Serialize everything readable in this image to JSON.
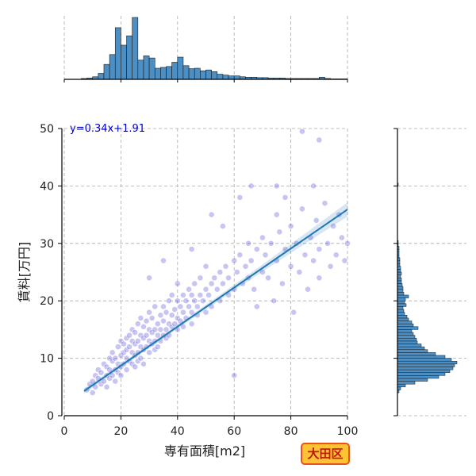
{
  "chart_data": {
    "type": "scatter",
    "title": "",
    "xlabel": "専有面積[m2]",
    "ylabel": "賃料[万円]",
    "xlim": [
      0,
      100
    ],
    "ylim": [
      0,
      50
    ],
    "xticks": [
      "0",
      "20",
      "40",
      "60",
      "80",
      "100"
    ],
    "yticks": [
      "0",
      "10",
      "20",
      "30",
      "40",
      "50"
    ],
    "grid": true,
    "annotation": "y=0.34x+1.91",
    "badge": "大田区",
    "regression": {
      "slope": 0.34,
      "intercept": 1.91,
      "x_range": [
        7,
        100
      ]
    },
    "points": [
      [
        8,
        4.5
      ],
      [
        9,
        5.5
      ],
      [
        10,
        6
      ],
      [
        10,
        4
      ],
      [
        11,
        7
      ],
      [
        11,
        5
      ],
      [
        12,
        6.5
      ],
      [
        12,
        8
      ],
      [
        13,
        5.5
      ],
      [
        13,
        7.5
      ],
      [
        14,
        6
      ],
      [
        14,
        9
      ],
      [
        15,
        7
      ],
      [
        15,
        8.5
      ],
      [
        15,
        5
      ],
      [
        16,
        6.5
      ],
      [
        16,
        10
      ],
      [
        16,
        8
      ],
      [
        17,
        7
      ],
      [
        17,
        9.5
      ],
      [
        17,
        11
      ],
      [
        18,
        8
      ],
      [
        18,
        6
      ],
      [
        18,
        10
      ],
      [
        19,
        9
      ],
      [
        19,
        7.5
      ],
      [
        19,
        12
      ],
      [
        20,
        8.5
      ],
      [
        20,
        10.5
      ],
      [
        20,
        13
      ],
      [
        20,
        7
      ],
      [
        21,
        9
      ],
      [
        21,
        11
      ],
      [
        21,
        12.5
      ],
      [
        22,
        10
      ],
      [
        22,
        8
      ],
      [
        22,
        13.5
      ],
      [
        22,
        11.5
      ],
      [
        23,
        9.5
      ],
      [
        23,
        12
      ],
      [
        23,
        14
      ],
      [
        24,
        11
      ],
      [
        24,
        9
      ],
      [
        24,
        13
      ],
      [
        24,
        15
      ],
      [
        25,
        10.5
      ],
      [
        25,
        12.5
      ],
      [
        25,
        14.5
      ],
      [
        25,
        8.5
      ],
      [
        26,
        11
      ],
      [
        26,
        13
      ],
      [
        26,
        16
      ],
      [
        26,
        9.5
      ],
      [
        27,
        12
      ],
      [
        27,
        14
      ],
      [
        27,
        10
      ],
      [
        27,
        17
      ],
      [
        28,
        11.5
      ],
      [
        28,
        13.5
      ],
      [
        28,
        15.5
      ],
      [
        28,
        9
      ],
      [
        29,
        12
      ],
      [
        29,
        14
      ],
      [
        29,
        16.5
      ],
      [
        30,
        13
      ],
      [
        30,
        11
      ],
      [
        30,
        15
      ],
      [
        30,
        18
      ],
      [
        31,
        12.5
      ],
      [
        31,
        14.5
      ],
      [
        31,
        17
      ],
      [
        32,
        13
      ],
      [
        32,
        15
      ],
      [
        32,
        11.5
      ],
      [
        32,
        19
      ],
      [
        33,
        14
      ],
      [
        33,
        16
      ],
      [
        33,
        12
      ],
      [
        34,
        15
      ],
      [
        34,
        13
      ],
      [
        34,
        17.5
      ],
      [
        35,
        14
      ],
      [
        35,
        16.5
      ],
      [
        35,
        19
      ],
      [
        36,
        15
      ],
      [
        36,
        13.5
      ],
      [
        36,
        18
      ],
      [
        37,
        16
      ],
      [
        37,
        14
      ],
      [
        37,
        20
      ],
      [
        38,
        15.5
      ],
      [
        38,
        17.5
      ],
      [
        38,
        21
      ],
      [
        39,
        16
      ],
      [
        39,
        18.5
      ],
      [
        40,
        17
      ],
      [
        40,
        15
      ],
      [
        40,
        20
      ],
      [
        40,
        23
      ],
      [
        41,
        16.5
      ],
      [
        41,
        19
      ],
      [
        42,
        18
      ],
      [
        42,
        21
      ],
      [
        42,
        15.5
      ],
      [
        43,
        17
      ],
      [
        43,
        20
      ],
      [
        44,
        19
      ],
      [
        44,
        22
      ],
      [
        45,
        18
      ],
      [
        45,
        16
      ],
      [
        45,
        21
      ],
      [
        46,
        20
      ],
      [
        46,
        23
      ],
      [
        47,
        19
      ],
      [
        47,
        17.5
      ],
      [
        48,
        21
      ],
      [
        48,
        24
      ],
      [
        49,
        20
      ],
      [
        50,
        22
      ],
      [
        50,
        18
      ],
      [
        50,
        26
      ],
      [
        51,
        21
      ],
      [
        52,
        23
      ],
      [
        52,
        19
      ],
      [
        53,
        24
      ],
      [
        54,
        22
      ],
      [
        55,
        25
      ],
      [
        55,
        20
      ],
      [
        56,
        23
      ],
      [
        57,
        26
      ],
      [
        58,
        24
      ],
      [
        58,
        21
      ],
      [
        60,
        27
      ],
      [
        60,
        22
      ],
      [
        60,
        7
      ],
      [
        61,
        25
      ],
      [
        62,
        28
      ],
      [
        63,
        23
      ],
      [
        64,
        26
      ],
      [
        65,
        24
      ],
      [
        65,
        30
      ],
      [
        66,
        27
      ],
      [
        67,
        22
      ],
      [
        68,
        29
      ],
      [
        68,
        19
      ],
      [
        70,
        25
      ],
      [
        70,
        31
      ],
      [
        71,
        28
      ],
      [
        72,
        24
      ],
      [
        73,
        30
      ],
      [
        74,
        20
      ],
      [
        75,
        27
      ],
      [
        75,
        35
      ],
      [
        76,
        32
      ],
      [
        77,
        23
      ],
      [
        78,
        29
      ],
      [
        80,
        26
      ],
      [
        80,
        33
      ],
      [
        81,
        18
      ],
      [
        82,
        30
      ],
      [
        83,
        25
      ],
      [
        84,
        36
      ],
      [
        85,
        28
      ],
      [
        86,
        22
      ],
      [
        87,
        31
      ],
      [
        88,
        27
      ],
      [
        88,
        40
      ],
      [
        89,
        34
      ],
      [
        90,
        29
      ],
      [
        90,
        24
      ],
      [
        92,
        37
      ],
      [
        93,
        30
      ],
      [
        94,
        26
      ],
      [
        95,
        33
      ],
      [
        96,
        28
      ],
      [
        97,
        35
      ],
      [
        98,
        31
      ],
      [
        99,
        27
      ],
      [
        84,
        49.5
      ],
      [
        90,
        48
      ],
      [
        66,
        40
      ],
      [
        62,
        38
      ],
      [
        75,
        40
      ],
      [
        52,
        35
      ],
      [
        45,
        29
      ],
      [
        35,
        27
      ],
      [
        30,
        24
      ],
      [
        56,
        33
      ],
      [
        78,
        38
      ],
      [
        100,
        30
      ]
    ],
    "top_histogram": {
      "bin_width": 2,
      "bin_starts": [
        6,
        8,
        10,
        12,
        14,
        16,
        18,
        20,
        22,
        24,
        26,
        28,
        30,
        32,
        34,
        36,
        38,
        40,
        42,
        44,
        46,
        48,
        50,
        52,
        54,
        56,
        58,
        60,
        62,
        64,
        66,
        68,
        70,
        72,
        74,
        76,
        78,
        80,
        82,
        84,
        86,
        88,
        90,
        92,
        94,
        96,
        98
      ],
      "counts": [
        2,
        3,
        6,
        14,
        35,
        58,
        121,
        80,
        102,
        145,
        45,
        55,
        50,
        26,
        28,
        30,
        40,
        52,
        32,
        25,
        26,
        20,
        22,
        18,
        12,
        10,
        8,
        8,
        6,
        5,
        5,
        4,
        4,
        3,
        3,
        3,
        2,
        2,
        2,
        2,
        2,
        2,
        5,
        2,
        1,
        1,
        1
      ]
    },
    "right_histogram": {
      "bin_width": 0.5,
      "bin_starts": [
        4,
        4.5,
        5,
        5.5,
        6,
        6.5,
        7,
        7.5,
        8,
        8.5,
        9,
        9.5,
        10,
        10.5,
        11,
        11.5,
        12,
        12.5,
        13,
        13.5,
        14,
        14.5,
        15,
        15.5,
        16,
        16.5,
        17,
        17.5,
        18,
        18.5,
        19,
        19.5,
        20,
        20.5,
        21,
        21.5,
        22,
        22.5,
        23,
        23.5,
        24,
        24.5,
        25,
        25.5,
        26,
        26.5,
        27,
        27.5,
        28,
        28.5,
        29,
        29.5,
        30,
        40
      ],
      "counts": [
        2,
        4,
        10,
        22,
        38,
        52,
        60,
        66,
        70,
        72,
        75,
        68,
        60,
        48,
        38,
        34,
        30,
        25,
        24,
        22,
        20,
        18,
        26,
        20,
        18,
        14,
        12,
        9,
        8,
        7,
        11,
        9,
        10,
        14,
        8,
        7,
        7,
        6,
        5,
        5,
        4,
        5,
        4,
        4,
        3,
        3,
        3,
        2,
        2,
        2,
        2,
        1,
        1,
        1
      ]
    }
  }
}
